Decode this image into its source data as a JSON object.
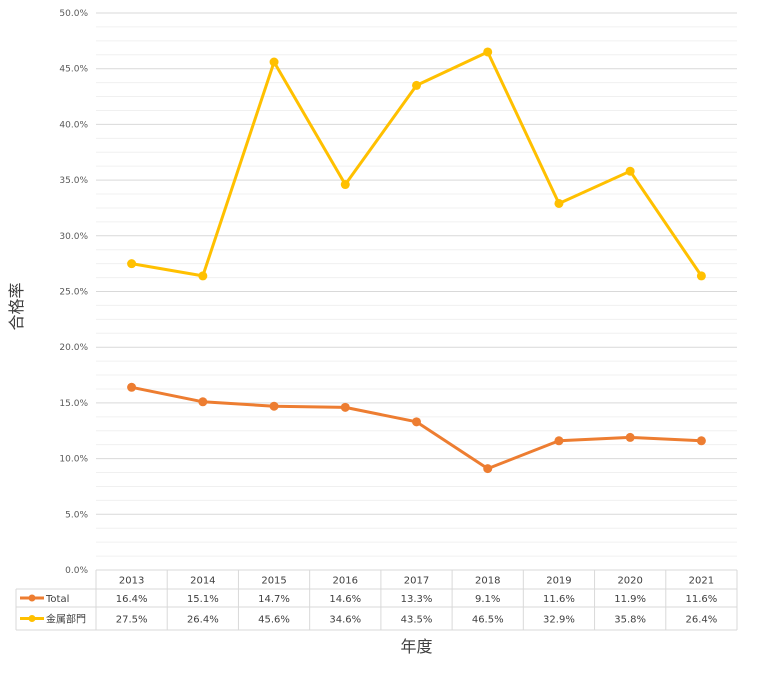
{
  "chart_data": {
    "type": "line",
    "title": "",
    "xlabel": "年度",
    "ylabel": "合格率",
    "ylim": [
      0,
      50
    ],
    "y_ticks": [
      "0.0%",
      "5.0%",
      "10.0%",
      "15.0%",
      "20.0%",
      "25.0%",
      "30.0%",
      "35.0%",
      "40.0%",
      "45.0%",
      "50.0%"
    ],
    "categories": [
      "2013",
      "2014",
      "2015",
      "2016",
      "2017",
      "2018",
      "2019",
      "2020",
      "2021"
    ],
    "series": [
      {
        "name": "Total",
        "color": "#ED7D31",
        "values": [
          16.4,
          15.1,
          14.7,
          14.6,
          13.3,
          9.1,
          11.6,
          11.9,
          11.6
        ],
        "labels": [
          "16.4%",
          "15.1%",
          "14.7%",
          "14.6%",
          "13.3%",
          "9.1%",
          "11.6%",
          "11.9%",
          "11.6%"
        ]
      },
      {
        "name": "金属部門",
        "color": "#FFC000",
        "values": [
          27.5,
          26.4,
          45.6,
          34.6,
          43.5,
          46.5,
          32.9,
          35.8,
          26.4
        ],
        "labels": [
          "27.5%",
          "26.4%",
          "45.6%",
          "34.6%",
          "43.5%",
          "46.5%",
          "32.9%",
          "35.8%",
          "26.4%"
        ]
      }
    ],
    "grid": true,
    "legend": "data-table"
  }
}
